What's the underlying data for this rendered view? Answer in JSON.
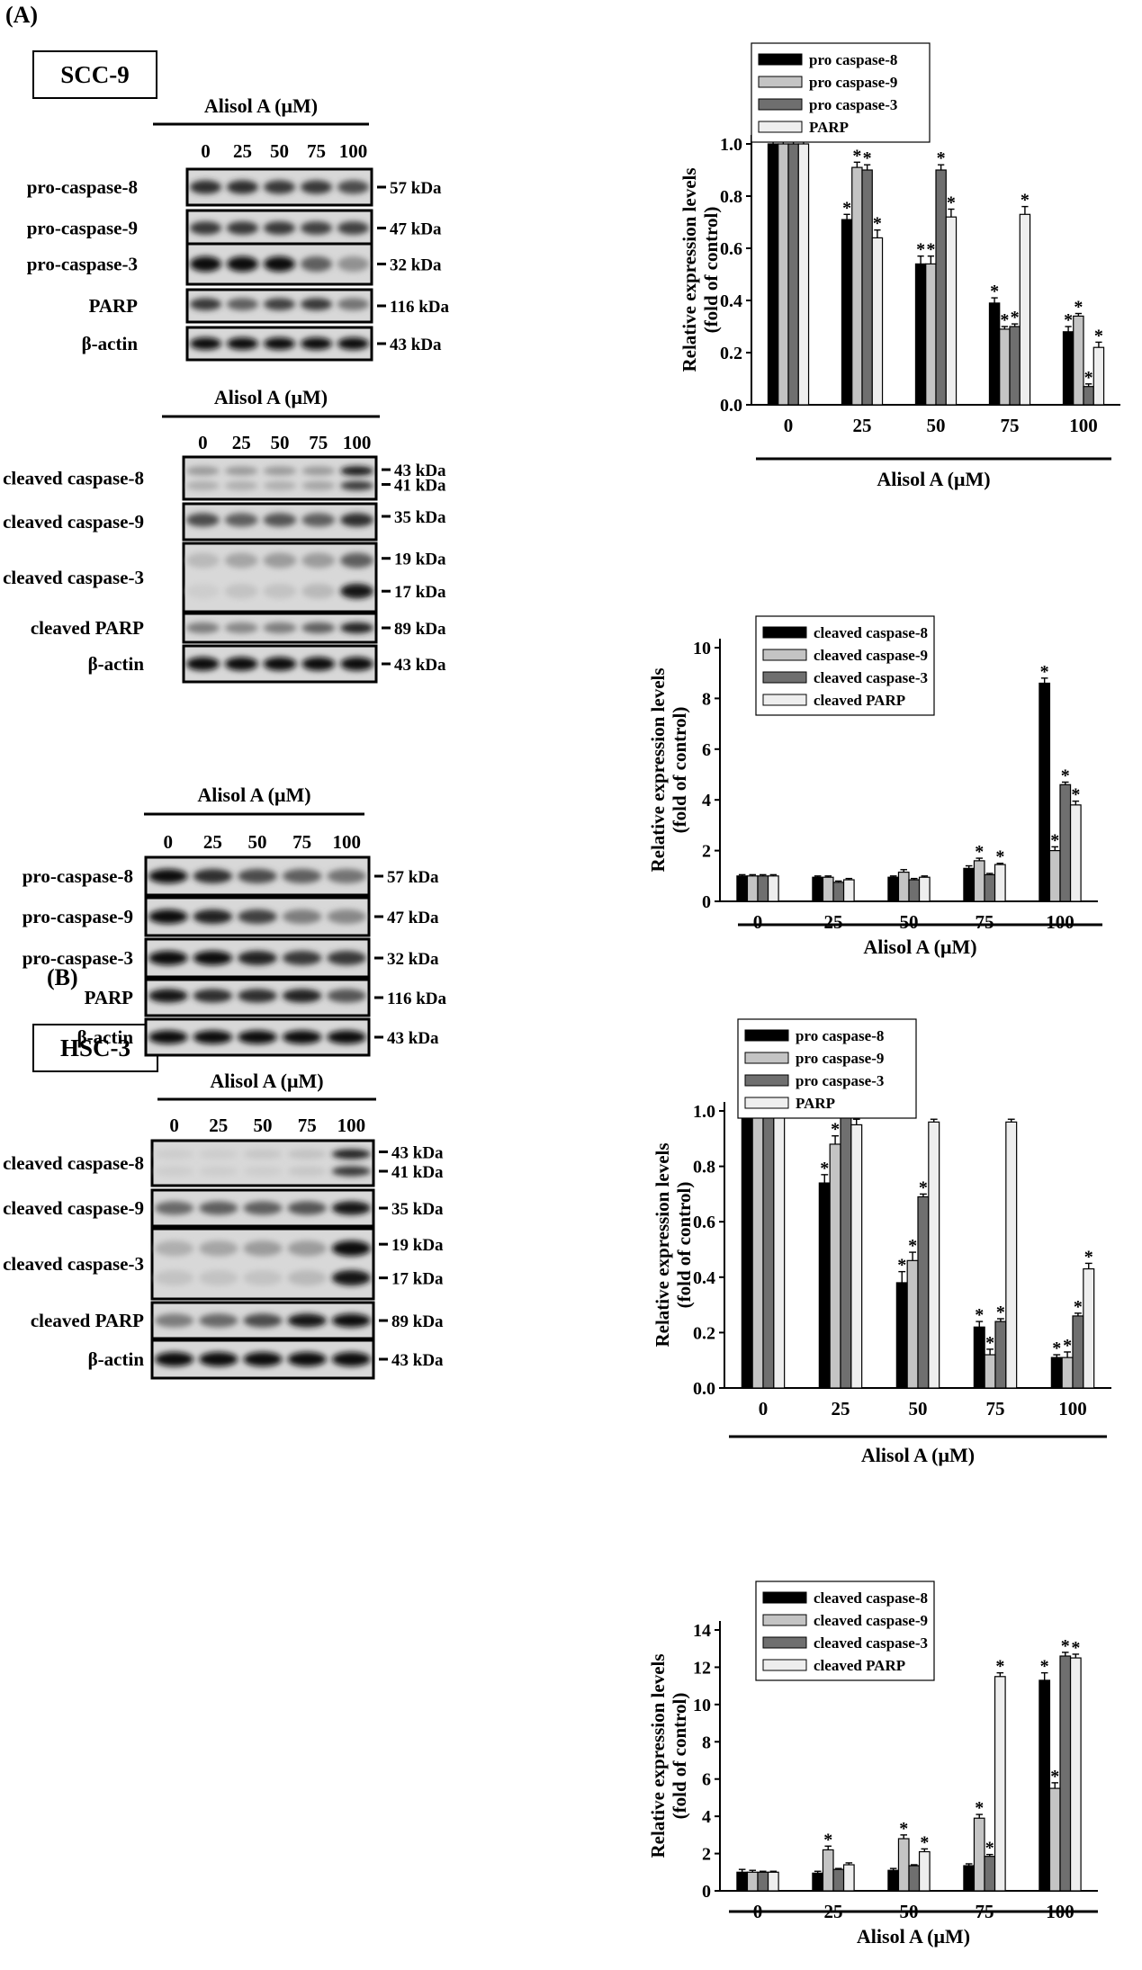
{
  "panels": [
    {
      "label": "(A)",
      "cell_line": "SCC-9",
      "blots": [
        {
          "treatment_label": "Alisol A (μM)",
          "doses": [
            "0",
            "25",
            "50",
            "75",
            "100"
          ],
          "rows": [
            {
              "label": "pro-caspase-8",
              "markers": [
                "57 kDa"
              ]
            },
            {
              "label": "pro-caspase-9",
              "markers": [
                "47 kDa"
              ]
            },
            {
              "label": "pro-caspase-3",
              "markers": [
                "32 kDa"
              ]
            },
            {
              "label": "PARP",
              "markers": [
                "116 kDa"
              ]
            },
            {
              "label": "β-actin",
              "markers": [
                "43 kDa"
              ]
            }
          ]
        },
        {
          "treatment_label": "Alisol A (μM)",
          "doses": [
            "0",
            "25",
            "50",
            "75",
            "100"
          ],
          "rows": [
            {
              "label": "cleaved caspase-8",
              "markers": [
                "43 kDa",
                "41 kDa"
              ]
            },
            {
              "label": "cleaved caspase-9",
              "markers": [
                "35 kDa"
              ]
            },
            {
              "label": "cleaved caspase-3",
              "markers": [
                "19 kDa",
                "17 kDa"
              ]
            },
            {
              "label": "cleaved PARP",
              "markers": [
                "89 kDa"
              ]
            },
            {
              "label": "β-actin",
              "markers": [
                "43 kDa"
              ]
            }
          ]
        }
      ]
    },
    {
      "label": "(B)",
      "cell_line": "HSC-3",
      "blots": [
        {
          "treatment_label": "Alisol A (μM)",
          "doses": [
            "0",
            "25",
            "50",
            "75",
            "100"
          ],
          "rows": [
            {
              "label": "pro-caspase-8",
              "markers": [
                "57 kDa"
              ]
            },
            {
              "label": "pro-caspase-9",
              "markers": [
                "47 kDa"
              ]
            },
            {
              "label": "pro-caspase-3",
              "markers": [
                "32 kDa"
              ]
            },
            {
              "label": "PARP",
              "markers": [
                "116 kDa"
              ]
            },
            {
              "label": "β-actin",
              "markers": [
                "43 kDa"
              ]
            }
          ]
        },
        {
          "treatment_label": "Alisol A (μM)",
          "doses": [
            "0",
            "25",
            "50",
            "75",
            "100"
          ],
          "rows": [
            {
              "label": "cleaved caspase-8",
              "markers": [
                "43 kDa",
                "41 kDa"
              ]
            },
            {
              "label": "cleaved caspase-9",
              "markers": [
                "35 kDa"
              ]
            },
            {
              "label": "cleaved caspase-3",
              "markers": [
                "19 kDa",
                "17 kDa"
              ]
            },
            {
              "label": "cleaved PARP",
              "markers": [
                "89 kDa"
              ]
            },
            {
              "label": "β-actin",
              "markers": [
                "43 kDa"
              ]
            }
          ]
        }
      ]
    }
  ],
  "series_colors": [
    "#000000",
    "#c4c4c4",
    "#6f6f6f",
    "#eeeeee"
  ],
  "chart_data": [
    {
      "type": "bar",
      "xlabel": "Alisol A (μM)",
      "ylabel": "Relative expression levels (fold of control)",
      "categories": [
        "0",
        "25",
        "50",
        "75",
        "100"
      ],
      "ylim": [
        0,
        1.0
      ],
      "yticks": [
        "0.0",
        "0.2",
        "0.4",
        "0.6",
        "0.8",
        "1.0"
      ],
      "legend_position": "top",
      "series": [
        {
          "name": "pro caspase-8",
          "values": [
            1.0,
            0.71,
            0.54,
            0.39,
            0.28
          ],
          "errors": [
            0.02,
            0.02,
            0.03,
            0.02,
            0.02
          ],
          "significant": [
            false,
            true,
            true,
            true,
            true
          ]
        },
        {
          "name": "pro caspase-9",
          "values": [
            1.0,
            0.91,
            0.54,
            0.29,
            0.34
          ],
          "errors": [
            0.02,
            0.02,
            0.03,
            0.01,
            0.01
          ],
          "significant": [
            false,
            true,
            true,
            true,
            true
          ]
        },
        {
          "name": "pro caspase-3",
          "values": [
            1.0,
            0.9,
            0.9,
            0.3,
            0.07
          ],
          "errors": [
            0.02,
            0.02,
            0.02,
            0.01,
            0.01
          ],
          "significant": [
            false,
            true,
            true,
            true,
            true
          ]
        },
        {
          "name": "PARP",
          "values": [
            1.0,
            0.64,
            0.72,
            0.73,
            0.22
          ],
          "errors": [
            0.02,
            0.03,
            0.03,
            0.03,
            0.02
          ],
          "significant": [
            false,
            true,
            true,
            true,
            true
          ]
        }
      ]
    },
    {
      "type": "bar",
      "xlabel": "Alisol A (μM)",
      "ylabel": "Relative expression levels (fold of control)",
      "categories": [
        "0",
        "25",
        "50",
        "75",
        "100"
      ],
      "ylim": [
        0,
        10
      ],
      "yticks": [
        "0",
        "2",
        "4",
        "6",
        "8",
        "10"
      ],
      "legend_position": "top-right",
      "series": [
        {
          "name": "cleaved caspase-8",
          "values": [
            1.0,
            0.95,
            0.95,
            1.3,
            8.6
          ],
          "errors": [
            0.05,
            0.05,
            0.05,
            0.1,
            0.2
          ],
          "significant": [
            false,
            false,
            false,
            false,
            true
          ]
        },
        {
          "name": "cleaved caspase-9",
          "values": [
            1.0,
            0.95,
            1.15,
            1.6,
            2.0
          ],
          "errors": [
            0.05,
            0.05,
            0.1,
            0.1,
            0.15
          ],
          "significant": [
            false,
            false,
            false,
            true,
            true
          ]
        },
        {
          "name": "cleaved caspase-3",
          "values": [
            1.0,
            0.75,
            0.85,
            1.05,
            4.6
          ],
          "errors": [
            0.05,
            0.05,
            0.05,
            0.05,
            0.1
          ],
          "significant": [
            false,
            false,
            false,
            false,
            true
          ]
        },
        {
          "name": "cleaved PARP",
          "values": [
            1.0,
            0.85,
            0.95,
            1.45,
            3.8
          ],
          "errors": [
            0.05,
            0.05,
            0.05,
            0.05,
            0.15
          ],
          "significant": [
            false,
            false,
            false,
            true,
            true
          ]
        }
      ]
    },
    {
      "type": "bar",
      "xlabel": "Alisol A (μM)",
      "ylabel": "Relative expression levels (fold of control)",
      "categories": [
        "0",
        "25",
        "50",
        "75",
        "100"
      ],
      "ylim": [
        0,
        1.0
      ],
      "yticks": [
        "0.0",
        "0.2",
        "0.4",
        "0.6",
        "0.8",
        "1.0"
      ],
      "legend_position": "top",
      "series": [
        {
          "name": "pro caspase-8",
          "values": [
            1.0,
            0.74,
            0.38,
            0.22,
            0.11
          ],
          "errors": [
            0.03,
            0.03,
            0.04,
            0.02,
            0.01
          ],
          "significant": [
            false,
            true,
            true,
            true,
            true
          ]
        },
        {
          "name": "pro caspase-9",
          "values": [
            1.0,
            0.88,
            0.46,
            0.12,
            0.11
          ],
          "errors": [
            0.03,
            0.03,
            0.03,
            0.02,
            0.02
          ],
          "significant": [
            false,
            true,
            true,
            true,
            true
          ]
        },
        {
          "name": "pro caspase-3",
          "values": [
            1.0,
            1.07,
            0.69,
            0.24,
            0.26
          ],
          "errors": [
            0.02,
            0.01,
            0.01,
            0.01,
            0.01
          ],
          "significant": [
            false,
            false,
            true,
            true,
            true
          ]
        },
        {
          "name": "PARP",
          "values": [
            1.0,
            0.95,
            0.96,
            0.96,
            0.43
          ],
          "errors": [
            0.02,
            0.02,
            0.01,
            0.01,
            0.02
          ],
          "significant": [
            false,
            false,
            false,
            false,
            true
          ]
        }
      ]
    },
    {
      "type": "bar",
      "xlabel": "Alisol A (μM)",
      "ylabel": "Relative expression levels (fold of control)",
      "categories": [
        "0",
        "25",
        "50",
        "75",
        "100"
      ],
      "ylim": [
        0,
        14
      ],
      "yticks": [
        "0",
        "2",
        "4",
        "6",
        "8",
        "10",
        "12",
        "14"
      ],
      "legend_position": "top",
      "series": [
        {
          "name": "cleaved caspase-8",
          "values": [
            1.0,
            0.95,
            1.1,
            1.35,
            11.3
          ],
          "errors": [
            0.15,
            0.1,
            0.1,
            0.1,
            0.4
          ],
          "significant": [
            false,
            false,
            false,
            false,
            true
          ]
        },
        {
          "name": "cleaved caspase-9",
          "values": [
            1.0,
            2.2,
            2.8,
            3.9,
            5.5
          ],
          "errors": [
            0.1,
            0.2,
            0.2,
            0.2,
            0.3
          ],
          "significant": [
            false,
            true,
            true,
            true,
            true
          ]
        },
        {
          "name": "cleaved caspase-3",
          "values": [
            1.0,
            1.15,
            1.35,
            1.85,
            12.6
          ],
          "errors": [
            0.05,
            0.05,
            0.05,
            0.1,
            0.2
          ],
          "significant": [
            false,
            false,
            false,
            true,
            true
          ]
        },
        {
          "name": "cleaved PARP",
          "values": [
            1.0,
            1.4,
            2.1,
            11.5,
            12.5
          ],
          "errors": [
            0.05,
            0.1,
            0.15,
            0.2,
            0.2
          ],
          "significant": [
            false,
            false,
            true,
            true,
            true
          ]
        }
      ]
    }
  ]
}
